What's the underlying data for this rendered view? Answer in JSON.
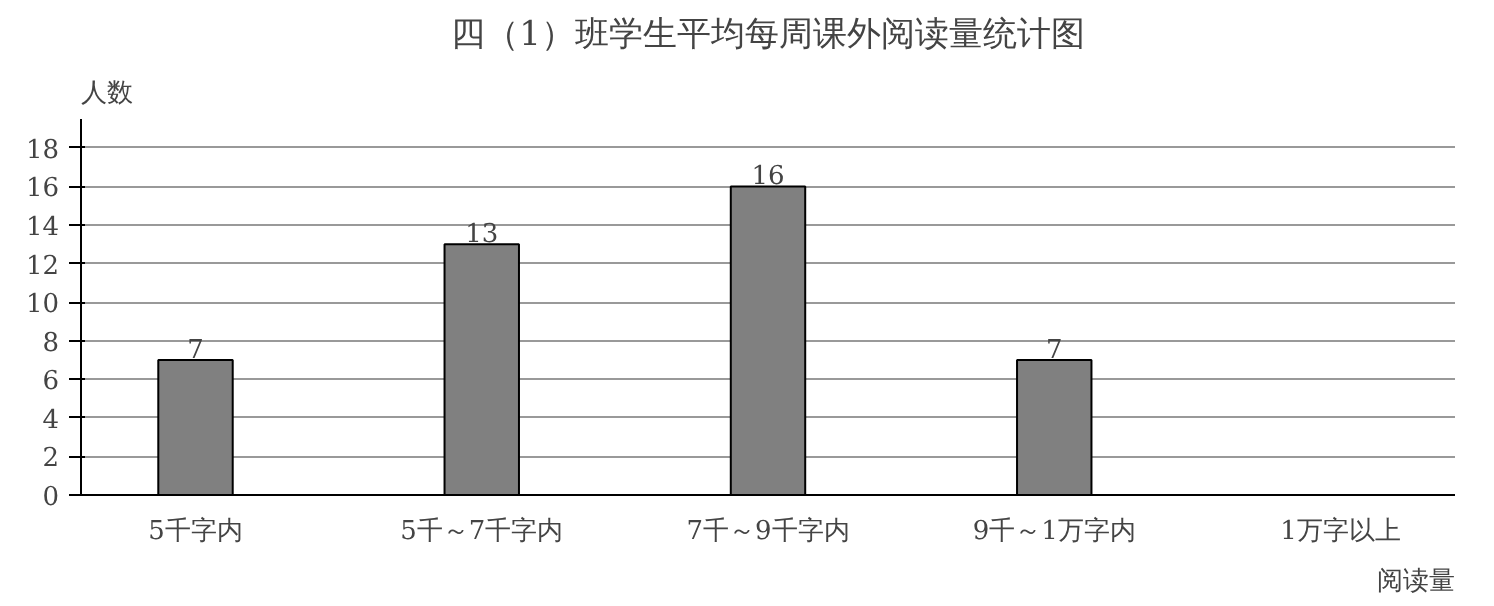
{
  "chart_data": {
    "type": "bar",
    "title": "四（1）班学生平均每周课外阅读量统计图",
    "xlabel": "阅读量",
    "ylabel": "人数",
    "categories": [
      "5千字内",
      "5千～7千字内",
      "7千～9千字内",
      "9千～1万字内",
      "1万字以上"
    ],
    "values": [
      7,
      13,
      16,
      7,
      null
    ],
    "color": "#808080",
    "data_labels": true,
    "ylim": [
      0,
      19.5
    ],
    "yticks": [
      0,
      2,
      4,
      6,
      8,
      10,
      12,
      14,
      16,
      18
    ],
    "grid": "y"
  }
}
